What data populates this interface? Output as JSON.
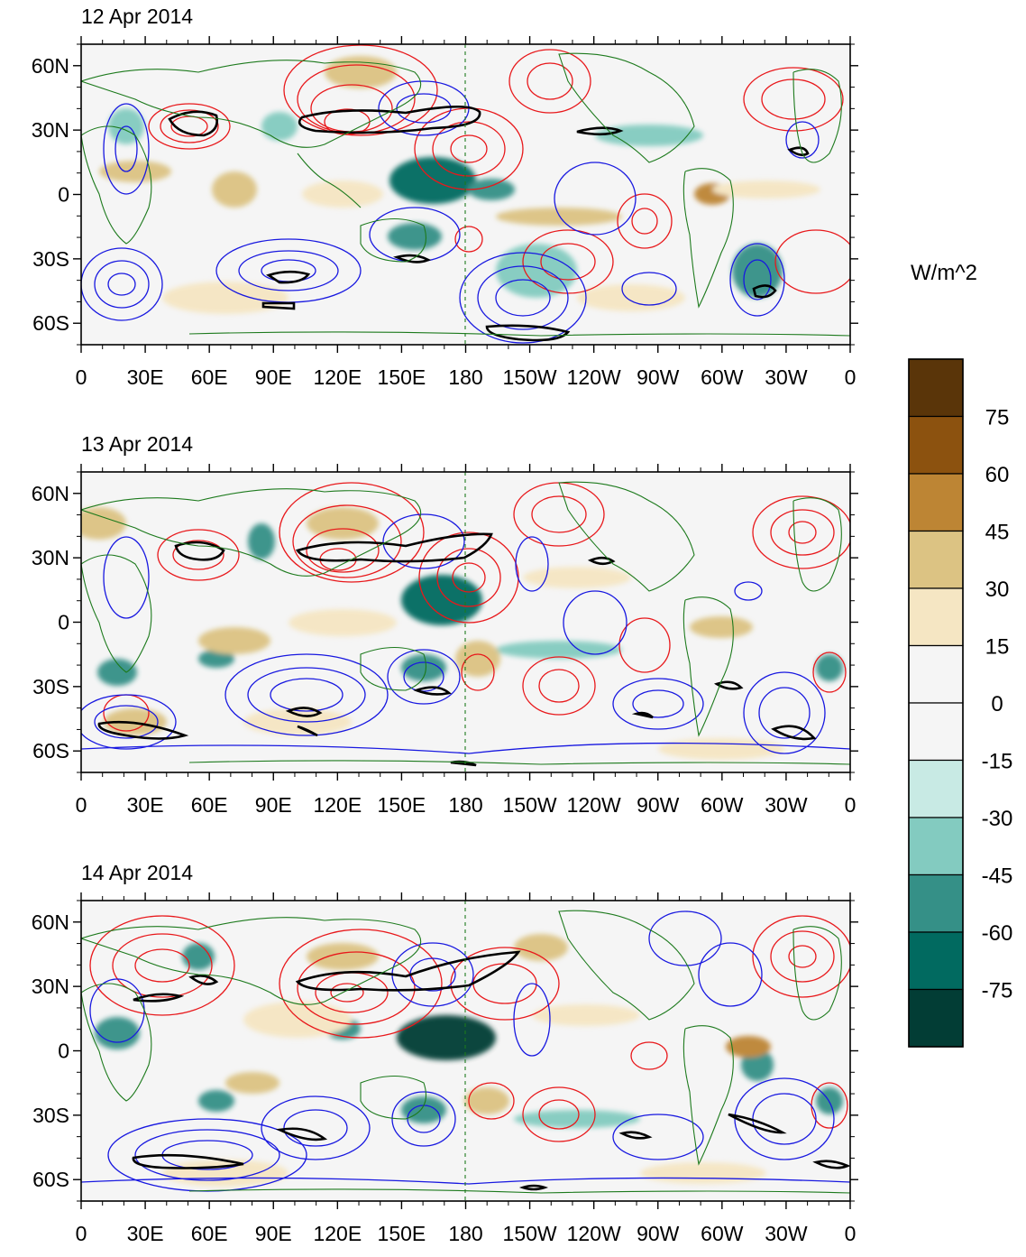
{
  "panels": [
    {
      "title": "12 Apr 2014"
    },
    {
      "title": "13 Apr 2014"
    },
    {
      "title": "14 Apr 2014"
    }
  ],
  "lat_ticks": [
    "60N",
    "30N",
    "0",
    "30S",
    "60S"
  ],
  "lat_values": [
    60,
    30,
    0,
    -30,
    -60
  ],
  "lon_ticks": [
    "0",
    "30E",
    "60E",
    "90E",
    "120E",
    "150E",
    "180",
    "150W",
    "120W",
    "90W",
    "60W",
    "30W",
    "0"
  ],
  "lon_values": [
    0,
    30,
    60,
    90,
    120,
    150,
    180,
    210,
    240,
    270,
    300,
    330,
    360
  ],
  "lat_range": [
    -70,
    70
  ],
  "lon_range": [
    0,
    360
  ],
  "colorbar": {
    "unit": "W/m^2",
    "levels": [
      "75",
      "60",
      "45",
      "30",
      "15",
      "0",
      "-15",
      "-30",
      "-45",
      "-60",
      "-75"
    ],
    "colors": [
      "#5a3509",
      "#8c520f",
      "#bd8534",
      "#dcc383",
      "#f5e6c3",
      "#f5f5f5",
      "#f5f5f5",
      "#c8eae4",
      "#83cbc0",
      "#359087",
      "#016a60",
      "#023d35"
    ]
  },
  "colors": {
    "positive_contour": "#e8181b",
    "negative_contour": "#1818e0",
    "coastline": "#1d7a1d",
    "thick_contour": "#000000",
    "dateline": "#1d7a1d"
  }
}
